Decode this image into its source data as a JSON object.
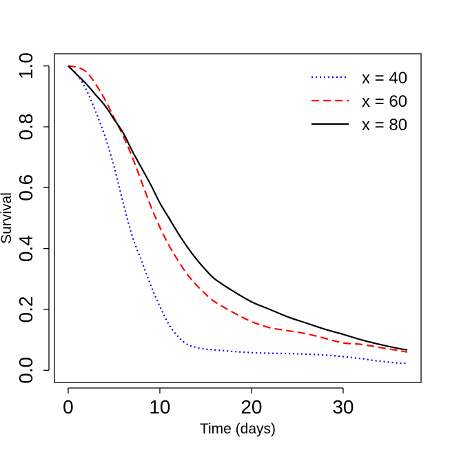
{
  "chart_data": {
    "type": "line",
    "title": "",
    "xlabel": "Time (days)",
    "ylabel": "Survival",
    "xlim": [
      -1.5,
      38.5
    ],
    "ylim": [
      -0.04,
      1.04
    ],
    "xticks": [
      0,
      10,
      20,
      30
    ],
    "xtick_labels": [
      "0",
      "10",
      "20",
      "30"
    ],
    "yticks": [
      0.0,
      0.2,
      0.4,
      0.6,
      0.8,
      1.0
    ],
    "ytick_labels": [
      "0.0",
      "0.2",
      "0.4",
      "0.6",
      "0.8",
      "1.0"
    ],
    "grid": false,
    "legend_position": "top-right",
    "series": [
      {
        "name": "x = 40",
        "color": "#0000ff",
        "dash": "dotted",
        "x": [
          0,
          1,
          2,
          3,
          4,
          5,
          6,
          7,
          8,
          9,
          10,
          11,
          12,
          13,
          14,
          15,
          16,
          18,
          20,
          22,
          24,
          26,
          28,
          30,
          32,
          34,
          36,
          37
        ],
        "y": [
          1.0,
          0.97,
          0.92,
          0.85,
          0.77,
          0.67,
          0.55,
          0.44,
          0.36,
          0.28,
          0.21,
          0.15,
          0.11,
          0.085,
          0.075,
          0.07,
          0.067,
          0.062,
          0.058,
          0.056,
          0.055,
          0.053,
          0.05,
          0.045,
          0.038,
          0.03,
          0.024,
          0.023
        ]
      },
      {
        "name": "x = 60",
        "color": "#ff0000",
        "dash": "dashed",
        "x": [
          0,
          1,
          2,
          3,
          4,
          5,
          6,
          7,
          8,
          9,
          10,
          11,
          12,
          13,
          14,
          15,
          16,
          18,
          20,
          22,
          24,
          26,
          28,
          30,
          32,
          34,
          36,
          37
        ],
        "y": [
          1.0,
          0.995,
          0.98,
          0.94,
          0.89,
          0.83,
          0.77,
          0.7,
          0.62,
          0.54,
          0.47,
          0.41,
          0.36,
          0.315,
          0.28,
          0.25,
          0.225,
          0.19,
          0.16,
          0.14,
          0.13,
          0.12,
          0.105,
          0.09,
          0.085,
          0.075,
          0.065,
          0.06
        ]
      },
      {
        "name": "x = 80",
        "color": "#000000",
        "dash": "solid",
        "x": [
          0,
          1,
          2,
          3,
          4,
          5,
          6,
          7,
          8,
          9,
          10,
          11,
          12,
          13,
          14,
          15,
          16,
          18,
          20,
          22,
          24,
          26,
          28,
          30,
          32,
          34,
          36,
          37
        ],
        "y": [
          1.0,
          0.97,
          0.94,
          0.905,
          0.87,
          0.825,
          0.78,
          0.72,
          0.665,
          0.61,
          0.55,
          0.5,
          0.45,
          0.405,
          0.365,
          0.33,
          0.3,
          0.26,
          0.225,
          0.2,
          0.175,
          0.155,
          0.135,
          0.118,
          0.1,
          0.085,
          0.072,
          0.067
        ]
      }
    ]
  }
}
